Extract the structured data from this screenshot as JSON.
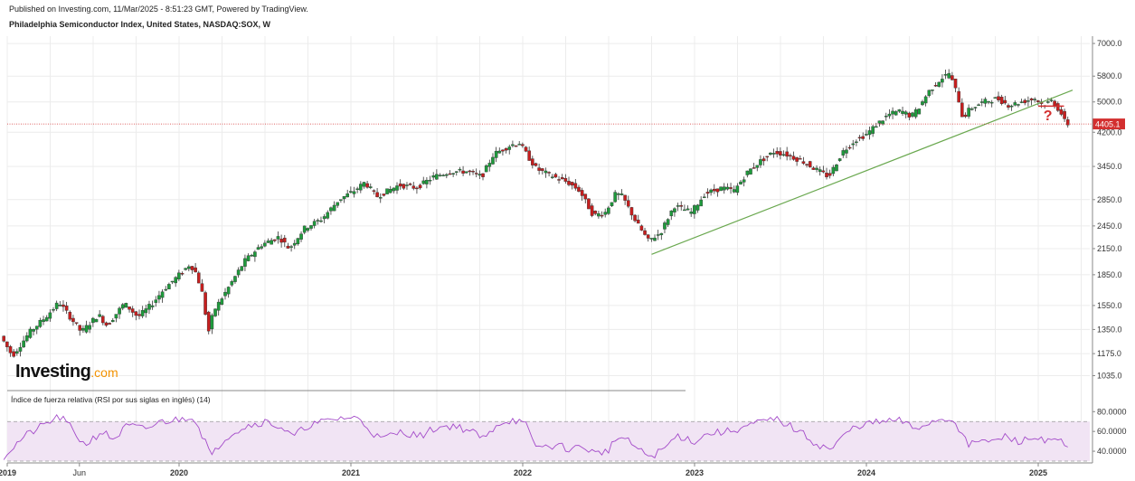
{
  "header": {
    "published": "Published on Investing.com, 11/Mar/2025 - 8:51:23 GMT, Powered by TradingView.",
    "title": "Philadelphia Semiconductor Index, United States, NASDAQ:SOX, W"
  },
  "brand": {
    "name": "Investing",
    "suffix": ".com"
  },
  "colors": {
    "up": "#1e9b3c",
    "down": "#c81e1e",
    "trendline": "#6aa84f",
    "price_line": "#d32f2f",
    "rsi_line": "#a34ac9",
    "rsi_band": "#f1e4f4",
    "grid": "#ececec"
  },
  "chart_data": [
    {
      "type": "candlestick",
      "title": "Philadelphia Semiconductor Index, United States, NASDAQ:SOX, W",
      "scale": "log",
      "ylim": [
        980,
        7300
      ],
      "y_ticks": [
        "1035.0",
        "1175.0",
        "1350.0",
        "1550.0",
        "1850.0",
        "2150.0",
        "2450.0",
        "2850.0",
        "3450.0",
        "4200.0",
        "5000.0",
        "5800.0",
        "7000.0"
      ],
      "x_ticks": [
        "2019",
        "Jun",
        "2020",
        "2021",
        "2022",
        "2023",
        "2024",
        "2025"
      ],
      "x_range": [
        2019.0,
        2025.3
      ],
      "last_price": "4405.1",
      "annotations": [
        {
          "text": "?",
          "color": "#d32f2f",
          "x": 2025.03,
          "y": 4500
        }
      ],
      "trendline": {
        "from": {
          "x": 2022.75,
          "y": 2080
        },
        "to": {
          "x": 2025.2,
          "y": 5350
        }
      },
      "horizontal_line": {
        "x0": 2025.0,
        "x1": 2025.15,
        "y": 4880
      },
      "path": [
        [
          2018.98,
          1300
        ],
        [
          2019.05,
          1160
        ],
        [
          2019.15,
          1330
        ],
        [
          2019.25,
          1460
        ],
        [
          2019.32,
          1580
        ],
        [
          2019.38,
          1460
        ],
        [
          2019.45,
          1330
        ],
        [
          2019.55,
          1470
        ],
        [
          2019.6,
          1380
        ],
        [
          2019.7,
          1570
        ],
        [
          2019.78,
          1450
        ],
        [
          2019.86,
          1560
        ],
        [
          2019.93,
          1700
        ],
        [
          2020.02,
          1850
        ],
        [
          2020.08,
          1960
        ],
        [
          2020.11,
          1900
        ],
        [
          2020.15,
          1700
        ],
        [
          2020.19,
          1330
        ],
        [
          2020.22,
          1500
        ],
        [
          2020.3,
          1700
        ],
        [
          2020.4,
          2000
        ],
        [
          2020.5,
          2200
        ],
        [
          2020.6,
          2300
        ],
        [
          2020.66,
          2150
        ],
        [
          2020.75,
          2420
        ],
        [
          2020.85,
          2550
        ],
        [
          2020.95,
          2850
        ],
        [
          2021.04,
          3000
        ],
        [
          2021.1,
          3150
        ],
        [
          2021.17,
          2900
        ],
        [
          2021.3,
          3100
        ],
        [
          2021.4,
          3050
        ],
        [
          2021.5,
          3250
        ],
        [
          2021.6,
          3350
        ],
        [
          2021.7,
          3350
        ],
        [
          2021.78,
          3250
        ],
        [
          2021.85,
          3700
        ],
        [
          2021.95,
          3900
        ],
        [
          2022.0,
          3950
        ],
        [
          2022.05,
          3650
        ],
        [
          2022.1,
          3400
        ],
        [
          2022.2,
          3250
        ],
        [
          2022.28,
          3150
        ],
        [
          2022.35,
          3000
        ],
        [
          2022.43,
          2600
        ],
        [
          2022.5,
          2650
        ],
        [
          2022.56,
          2950
        ],
        [
          2022.6,
          2900
        ],
        [
          2022.68,
          2500
        ],
        [
          2022.75,
          2250
        ],
        [
          2022.82,
          2350
        ],
        [
          2022.9,
          2750
        ],
        [
          2023.0,
          2650
        ],
        [
          2023.08,
          2950
        ],
        [
          2023.18,
          3050
        ],
        [
          2023.25,
          3000
        ],
        [
          2023.33,
          3350
        ],
        [
          2023.4,
          3550
        ],
        [
          2023.48,
          3750
        ],
        [
          2023.55,
          3700
        ],
        [
          2023.65,
          3550
        ],
        [
          2023.72,
          3400
        ],
        [
          2023.8,
          3250
        ],
        [
          2023.88,
          3750
        ],
        [
          2023.95,
          4000
        ],
        [
          2024.02,
          4150
        ],
        [
          2024.08,
          4400
        ],
        [
          2024.15,
          4650
        ],
        [
          2024.22,
          4750
        ],
        [
          2024.28,
          4600
        ],
        [
          2024.32,
          4800
        ],
        [
          2024.38,
          5300
        ],
        [
          2024.45,
          5700
        ],
        [
          2024.5,
          5900
        ],
        [
          2024.55,
          5200
        ],
        [
          2024.58,
          4550
        ],
        [
          2024.62,
          4800
        ],
        [
          2024.7,
          5000
        ],
        [
          2024.78,
          5100
        ],
        [
          2024.85,
          4900
        ],
        [
          2024.92,
          5000
        ],
        [
          2025.0,
          5100
        ],
        [
          2025.05,
          4900
        ],
        [
          2025.1,
          5050
        ],
        [
          2025.15,
          4700
        ],
        [
          2025.18,
          4405
        ]
      ]
    },
    {
      "type": "line",
      "title": "Índice de fuerza relativa (RSI por sus siglas en inglés) (14)",
      "ylim": [
        30,
        83
      ],
      "y_ticks": [
        "80.0000",
        "60.0000",
        "40.0000"
      ],
      "bands": [
        70,
        30
      ],
      "path": [
        [
          2018.98,
          35
        ],
        [
          2019.1,
          55
        ],
        [
          2019.2,
          65
        ],
        [
          2019.3,
          75
        ],
        [
          2019.35,
          68
        ],
        [
          2019.45,
          46
        ],
        [
          2019.55,
          60
        ],
        [
          2019.62,
          52
        ],
        [
          2019.7,
          66
        ],
        [
          2019.8,
          62
        ],
        [
          2019.9,
          70
        ],
        [
          2020.0,
          72
        ],
        [
          2020.08,
          76
        ],
        [
          2020.12,
          62
        ],
        [
          2020.16,
          48
        ],
        [
          2020.19,
          33
        ],
        [
          2020.23,
          46
        ],
        [
          2020.3,
          58
        ],
        [
          2020.4,
          66
        ],
        [
          2020.5,
          70
        ],
        [
          2020.6,
          64
        ],
        [
          2020.66,
          54
        ],
        [
          2020.75,
          66
        ],
        [
          2020.85,
          70
        ],
        [
          2020.95,
          74
        ],
        [
          2021.05,
          73
        ],
        [
          2021.12,
          60
        ],
        [
          2021.17,
          52
        ],
        [
          2021.3,
          60
        ],
        [
          2021.4,
          55
        ],
        [
          2021.5,
          64
        ],
        [
          2021.6,
          66
        ],
        [
          2021.7,
          60
        ],
        [
          2021.78,
          52
        ],
        [
          2021.85,
          68
        ],
        [
          2021.95,
          72
        ],
        [
          2022.02,
          66
        ],
        [
          2022.06,
          48
        ],
        [
          2022.1,
          44
        ],
        [
          2022.2,
          46
        ],
        [
          2022.28,
          42
        ],
        [
          2022.35,
          45
        ],
        [
          2022.43,
          37
        ],
        [
          2022.5,
          42
        ],
        [
          2022.56,
          55
        ],
        [
          2022.63,
          48
        ],
        [
          2022.7,
          38
        ],
        [
          2022.75,
          35
        ],
        [
          2022.82,
          42
        ],
        [
          2022.9,
          56
        ],
        [
          2023.0,
          50
        ],
        [
          2023.08,
          58
        ],
        [
          2023.2,
          60
        ],
        [
          2023.3,
          65
        ],
        [
          2023.4,
          70
        ],
        [
          2023.48,
          72
        ],
        [
          2023.55,
          66
        ],
        [
          2023.65,
          55
        ],
        [
          2023.72,
          46
        ],
        [
          2023.8,
          42
        ],
        [
          2023.88,
          58
        ],
        [
          2023.95,
          66
        ],
        [
          2024.02,
          68
        ],
        [
          2024.1,
          70
        ],
        [
          2024.2,
          71
        ],
        [
          2024.28,
          62
        ],
        [
          2024.35,
          68
        ],
        [
          2024.42,
          72
        ],
        [
          2024.48,
          73
        ],
        [
          2024.52,
          70
        ],
        [
          2024.56,
          55
        ],
        [
          2024.6,
          45
        ],
        [
          2024.66,
          52
        ],
        [
          2024.72,
          48
        ],
        [
          2024.8,
          55
        ],
        [
          2024.88,
          50
        ],
        [
          2024.95,
          52
        ],
        [
          2025.02,
          54
        ],
        [
          2025.08,
          48
        ],
        [
          2025.12,
          52
        ],
        [
          2025.16,
          44
        ],
        [
          2025.18,
          41
        ]
      ]
    }
  ]
}
